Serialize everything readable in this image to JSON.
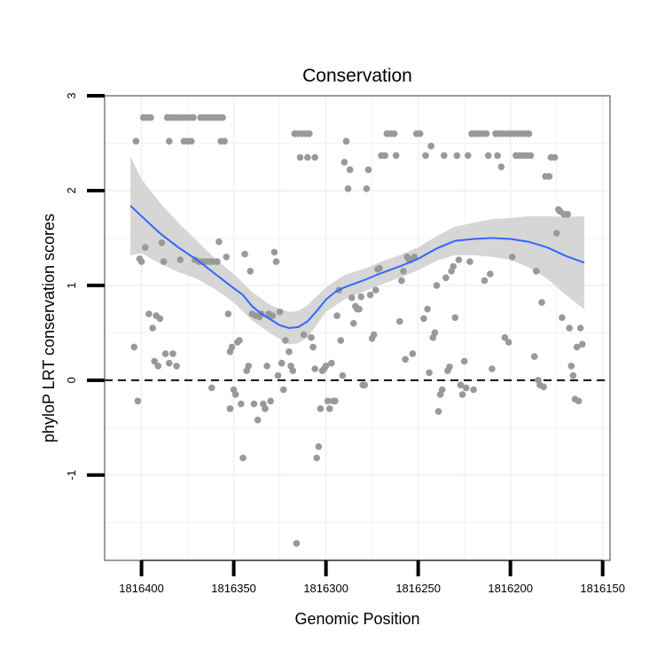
{
  "chart_data": {
    "type": "scatter",
    "title": "Conservation",
    "xlabel": "Genomic Position",
    "ylabel": "phyloP LRT conservation scores",
    "xlim": [
      1816420,
      1816146
    ],
    "x_reversed": true,
    "ylim": [
      -1.9,
      3.0
    ],
    "xticks": [
      1816400,
      1816350,
      1816300,
      1816250,
      1816200,
      1816150
    ],
    "xtick_labels": [
      "1816400",
      "1816350",
      "1816300",
      "1816250",
      "1816200",
      "1816150"
    ],
    "yticks": [
      -1,
      0,
      1,
      2,
      3
    ],
    "ytick_labels": [
      "-1",
      "0",
      "1",
      "2",
      "3"
    ],
    "reference_line": {
      "y": 0,
      "style": "dashed"
    },
    "colors": {
      "points": "#999999",
      "smooth": "#3366ff",
      "ribbon": "#d6d6d6",
      "grid": "#f2f2f2",
      "border": "#7f7f7f",
      "refline": "#000000"
    },
    "points": [
      [
        1816403,
        2.52
      ],
      [
        1816401,
        1.28
      ],
      [
        1816400,
        1.25
      ],
      [
        1816399,
        2.77
      ],
      [
        1816397,
        2.77
      ],
      [
        1816395,
        2.77
      ],
      [
        1816398,
        1.4
      ],
      [
        1816396,
        0.7
      ],
      [
        1816394,
        0.55
      ],
      [
        1816392,
        0.68
      ],
      [
        1816390,
        0.65
      ],
      [
        1816404,
        0.35
      ],
      [
        1816402,
        -0.22
      ],
      [
        1816393,
        0.2
      ],
      [
        1816391,
        0.15
      ],
      [
        1816389,
        1.45
      ],
      [
        1816388,
        1.25
      ],
      [
        1816386,
        2.77
      ],
      [
        1816384,
        2.77
      ],
      [
        1816382,
        2.77
      ],
      [
        1816380,
        2.77
      ],
      [
        1816378,
        2.77
      ],
      [
        1816376,
        2.77
      ],
      [
        1816374,
        2.77
      ],
      [
        1816372,
        2.77
      ],
      [
        1816385,
        2.52
      ],
      [
        1816387,
        0.28
      ],
      [
        1816385,
        0.18
      ],
      [
        1816383,
        0.28
      ],
      [
        1816381,
        0.15
      ],
      [
        1816379,
        1.27
      ],
      [
        1816377,
        2.52
      ],
      [
        1816375,
        2.52
      ],
      [
        1816373,
        2.52
      ],
      [
        1816371,
        1.27
      ],
      [
        1816369,
        1.25
      ],
      [
        1816368,
        2.77
      ],
      [
        1816366,
        2.77
      ],
      [
        1816364,
        2.77
      ],
      [
        1816362,
        2.77
      ],
      [
        1816360,
        2.77
      ],
      [
        1816358,
        2.77
      ],
      [
        1816356,
        2.77
      ],
      [
        1816367,
        1.25
      ],
      [
        1816365,
        1.25
      ],
      [
        1816363,
        1.25
      ],
      [
        1816361,
        1.25
      ],
      [
        1816359,
        1.25
      ],
      [
        1816357,
        2.52
      ],
      [
        1816355,
        2.52
      ],
      [
        1816354,
        1.3
      ],
      [
        1816353,
        0.7
      ],
      [
        1816362,
        -0.08
      ],
      [
        1816358,
        1.46
      ],
      [
        1816352,
        0.3
      ],
      [
        1816351,
        0.35
      ],
      [
        1816350,
        -0.1
      ],
      [
        1816349,
        -0.15
      ],
      [
        1816348,
        0.4
      ],
      [
        1816347,
        0.42
      ],
      [
        1816346,
        -0.25
      ],
      [
        1816352,
        -0.3
      ],
      [
        1816345,
        -0.82
      ],
      [
        1816344,
        1.33
      ],
      [
        1816343,
        0.1
      ],
      [
        1816342,
        0.15
      ],
      [
        1816341,
        1.15
      ],
      [
        1816340,
        0.7
      ],
      [
        1816339,
        -0.25
      ],
      [
        1816338,
        0.68
      ],
      [
        1816337,
        -0.42
      ],
      [
        1816336,
        0.67
      ],
      [
        1816335,
        0.7
      ],
      [
        1816334,
        -0.25
      ],
      [
        1816333,
        -0.3
      ],
      [
        1816332,
        0.15
      ],
      [
        1816331,
        0.7
      ],
      [
        1816330,
        -0.22
      ],
      [
        1816329,
        0.68
      ],
      [
        1816328,
        1.35
      ],
      [
        1816327,
        1.25
      ],
      [
        1816326,
        0.05
      ],
      [
        1816325,
        0.72
      ],
      [
        1816324,
        0.18
      ],
      [
        1816323,
        -0.1
      ],
      [
        1816322,
        0.42
      ],
      [
        1816320,
        0.3
      ],
      [
        1816319,
        0.15
      ],
      [
        1816318,
        0.1
      ],
      [
        1816316,
        -1.72
      ],
      [
        1816317,
        2.6
      ],
      [
        1816315,
        2.6
      ],
      [
        1816313,
        2.6
      ],
      [
        1816311,
        2.6
      ],
      [
        1816309,
        2.6
      ],
      [
        1816314,
        2.35
      ],
      [
        1816310,
        2.35
      ],
      [
        1816306,
        2.35
      ],
      [
        1816312,
        0.48
      ],
      [
        1816308,
        0.45
      ],
      [
        1816307,
        0.35
      ],
      [
        1816306,
        0.12
      ],
      [
        1816305,
        -0.82
      ],
      [
        1816304,
        -0.7
      ],
      [
        1816303,
        -0.3
      ],
      [
        1816302,
        0.1
      ],
      [
        1816301,
        0.12
      ],
      [
        1816300,
        0.15
      ],
      [
        1816299,
        -0.22
      ],
      [
        1816298,
        -0.3
      ],
      [
        1816297,
        0.18
      ],
      [
        1816296,
        -0.22
      ],
      [
        1816295,
        -0.22
      ],
      [
        1816294,
        0.68
      ],
      [
        1816293,
        0.95
      ],
      [
        1816292,
        0.42
      ],
      [
        1816291,
        0.05
      ],
      [
        1816290,
        2.3
      ],
      [
        1816289,
        2.52
      ],
      [
        1816288,
        2.02
      ],
      [
        1816287,
        2.22
      ],
      [
        1816286,
        0.87
      ],
      [
        1816285,
        0.6
      ],
      [
        1816284,
        0.78
      ],
      [
        1816283,
        0.75
      ],
      [
        1816282,
        0.75
      ],
      [
        1816281,
        0.88
      ],
      [
        1816280,
        -0.05
      ],
      [
        1816279,
        -0.05
      ],
      [
        1816278,
        2.02
      ],
      [
        1816277,
        2.22
      ],
      [
        1816276,
        0.9
      ],
      [
        1816275,
        0.44
      ],
      [
        1816274,
        0.48
      ],
      [
        1816273,
        0.95
      ],
      [
        1816272,
        1.17
      ],
      [
        1816271,
        1.18
      ],
      [
        1816270,
        2.37
      ],
      [
        1816268,
        2.37
      ],
      [
        1816267,
        2.6
      ],
      [
        1816265,
        2.6
      ],
      [
        1816263,
        2.6
      ],
      [
        1816262,
        2.37
      ],
      [
        1816260,
        0.62
      ],
      [
        1816259,
        1.05
      ],
      [
        1816258,
        1.15
      ],
      [
        1816257,
        0.22
      ],
      [
        1816256,
        1.3
      ],
      [
        1816255,
        1.27
      ],
      [
        1816254,
        1.27
      ],
      [
        1816253,
        0.28
      ],
      [
        1816252,
        1.3
      ],
      [
        1816251,
        2.6
      ],
      [
        1816249,
        2.6
      ],
      [
        1816247,
        0.65
      ],
      [
        1816246,
        2.37
      ],
      [
        1816245,
        0.75
      ],
      [
        1816244,
        0.08
      ],
      [
        1816243,
        2.47
      ],
      [
        1816242,
        0.45
      ],
      [
        1816241,
        0.5
      ],
      [
        1816240,
        1.0
      ],
      [
        1816239,
        -0.33
      ],
      [
        1816238,
        -0.15
      ],
      [
        1816237,
        -0.1
      ],
      [
        1816236,
        2.37
      ],
      [
        1816235,
        1.08
      ],
      [
        1816234,
        0.1
      ],
      [
        1816233,
        0.14
      ],
      [
        1816232,
        1.15
      ],
      [
        1816231,
        1.2
      ],
      [
        1816230,
        0.66
      ],
      [
        1816229,
        2.37
      ],
      [
        1816228,
        1.27
      ],
      [
        1816227,
        -0.05
      ],
      [
        1816226,
        -0.15
      ],
      [
        1816225,
        0.2
      ],
      [
        1816224,
        -0.08
      ],
      [
        1816223,
        2.37
      ],
      [
        1816222,
        1.25
      ],
      [
        1816221,
        2.6
      ],
      [
        1816219,
        2.6
      ],
      [
        1816217,
        2.6
      ],
      [
        1816215,
        2.6
      ],
      [
        1816213,
        2.6
      ],
      [
        1816220,
        -0.1
      ],
      [
        1816214,
        1.05
      ],
      [
        1816212,
        2.37
      ],
      [
        1816211,
        1.12
      ],
      [
        1816210,
        0.12
      ],
      [
        1816208,
        2.6
      ],
      [
        1816206,
        2.6
      ],
      [
        1816204,
        2.6
      ],
      [
        1816202,
        2.6
      ],
      [
        1816207,
        2.37
      ],
      [
        1816205,
        2.25
      ],
      [
        1816203,
        0.45
      ],
      [
        1816201,
        0.4
      ],
      [
        1816200,
        2.6
      ],
      [
        1816198,
        2.6
      ],
      [
        1816196,
        2.6
      ],
      [
        1816194,
        2.6
      ],
      [
        1816192,
        2.6
      ],
      [
        1816190,
        2.6
      ],
      [
        1816199,
        1.3
      ],
      [
        1816197,
        2.37
      ],
      [
        1816195,
        2.37
      ],
      [
        1816193,
        2.37
      ],
      [
        1816191,
        2.37
      ],
      [
        1816189,
        2.37
      ],
      [
        1816187,
        0.25
      ],
      [
        1816186,
        1.15
      ],
      [
        1816185,
        0.0
      ],
      [
        1816184,
        -0.05
      ],
      [
        1816183,
        0.82
      ],
      [
        1816182,
        -0.07
      ],
      [
        1816181,
        2.15
      ],
      [
        1816179,
        2.15
      ],
      [
        1816178,
        2.35
      ],
      [
        1816176,
        2.35
      ],
      [
        1816175,
        1.55
      ],
      [
        1816174,
        1.8
      ],
      [
        1816173,
        1.78
      ],
      [
        1816172,
        0.66
      ],
      [
        1816171,
        1.75
      ],
      [
        1816170,
        1.75
      ],
      [
        1816169,
        1.75
      ],
      [
        1816168,
        0.55
      ],
      [
        1816167,
        0.15
      ],
      [
        1816166,
        0.05
      ],
      [
        1816165,
        -0.2
      ],
      [
        1816164,
        0.35
      ],
      [
        1816163,
        -0.22
      ],
      [
        1816162,
        0.55
      ],
      [
        1816161,
        0.38
      ]
    ],
    "smooth": [
      [
        1816406,
        1.84
      ],
      [
        1816400,
        1.73
      ],
      [
        1816390,
        1.55
      ],
      [
        1816380,
        1.4
      ],
      [
        1816370,
        1.27
      ],
      [
        1816360,
        1.12
      ],
      [
        1816350,
        0.97
      ],
      [
        1816345,
        0.9
      ],
      [
        1816340,
        0.78
      ],
      [
        1816335,
        0.7
      ],
      [
        1816330,
        0.64
      ],
      [
        1816325,
        0.58
      ],
      [
        1816320,
        0.55
      ],
      [
        1816315,
        0.56
      ],
      [
        1816310,
        0.62
      ],
      [
        1816305,
        0.73
      ],
      [
        1816300,
        0.85
      ],
      [
        1816295,
        0.93
      ],
      [
        1816290,
        0.98
      ],
      [
        1816280,
        1.05
      ],
      [
        1816270,
        1.13
      ],
      [
        1816260,
        1.2
      ],
      [
        1816250,
        1.28
      ],
      [
        1816240,
        1.39
      ],
      [
        1816230,
        1.47
      ],
      [
        1816220,
        1.49
      ],
      [
        1816210,
        1.5
      ],
      [
        1816200,
        1.49
      ],
      [
        1816190,
        1.46
      ],
      [
        1816180,
        1.4
      ],
      [
        1816170,
        1.31
      ],
      [
        1816160,
        1.24
      ]
    ],
    "ribbon_upper": [
      [
        1816406,
        2.36
      ],
      [
        1816400,
        2.12
      ],
      [
        1816390,
        1.87
      ],
      [
        1816380,
        1.66
      ],
      [
        1816370,
        1.47
      ],
      [
        1816360,
        1.28
      ],
      [
        1816350,
        1.12
      ],
      [
        1816340,
        0.93
      ],
      [
        1816330,
        0.79
      ],
      [
        1816320,
        0.72
      ],
      [
        1816315,
        0.73
      ],
      [
        1816310,
        0.79
      ],
      [
        1816300,
        0.98
      ],
      [
        1816290,
        1.11
      ],
      [
        1816280,
        1.17
      ],
      [
        1816270,
        1.25
      ],
      [
        1816260,
        1.32
      ],
      [
        1816250,
        1.4
      ],
      [
        1816240,
        1.52
      ],
      [
        1816230,
        1.62
      ],
      [
        1816220,
        1.66
      ],
      [
        1816210,
        1.7
      ],
      [
        1816200,
        1.71
      ],
      [
        1816190,
        1.73
      ],
      [
        1816180,
        1.73
      ],
      [
        1816170,
        1.72
      ],
      [
        1816160,
        1.73
      ]
    ],
    "ribbon_lower": [
      [
        1816406,
        1.32
      ],
      [
        1816400,
        1.34
      ],
      [
        1816390,
        1.23
      ],
      [
        1816380,
        1.14
      ],
      [
        1816370,
        1.07
      ],
      [
        1816360,
        0.96
      ],
      [
        1816350,
        0.82
      ],
      [
        1816340,
        0.63
      ],
      [
        1816330,
        0.49
      ],
      [
        1816320,
        0.38
      ],
      [
        1816315,
        0.39
      ],
      [
        1816310,
        0.45
      ],
      [
        1816300,
        0.72
      ],
      [
        1816290,
        0.85
      ],
      [
        1816280,
        0.93
      ],
      [
        1816270,
        1.01
      ],
      [
        1816260,
        1.08
      ],
      [
        1816250,
        1.16
      ],
      [
        1816240,
        1.26
      ],
      [
        1816230,
        1.32
      ],
      [
        1816220,
        1.32
      ],
      [
        1816210,
        1.3
      ],
      [
        1816200,
        1.27
      ],
      [
        1816190,
        1.19
      ],
      [
        1816180,
        1.07
      ],
      [
        1816170,
        0.9
      ],
      [
        1816160,
        0.75
      ]
    ]
  }
}
